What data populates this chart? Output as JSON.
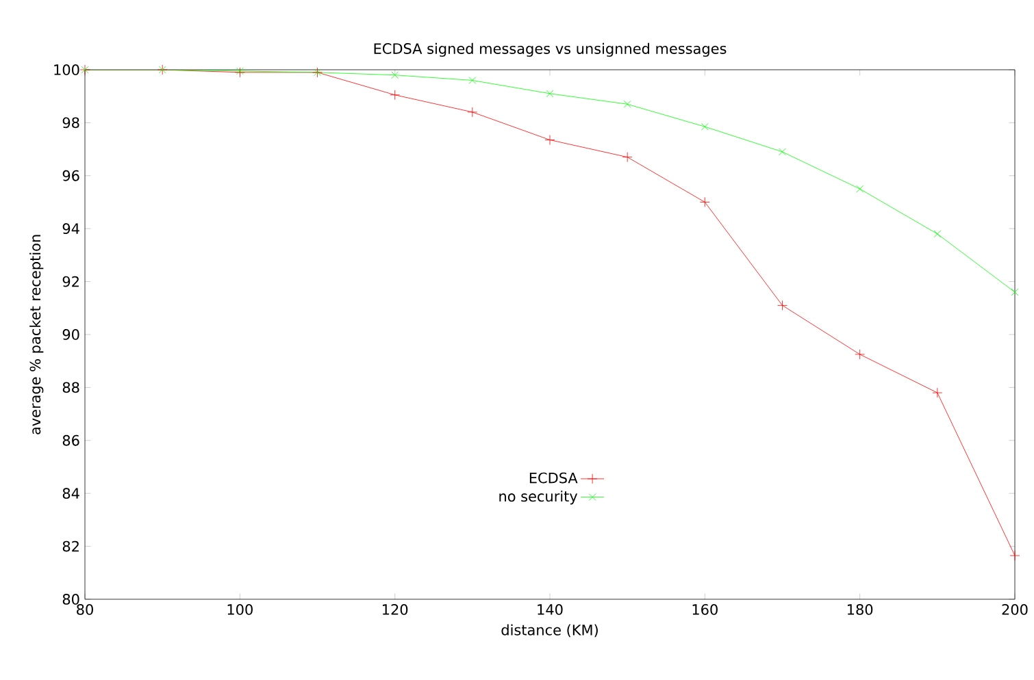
{
  "chart_data": {
    "type": "line",
    "title": "ECDSA signed messages vs unsignned messages",
    "xlabel": "distance (KM)",
    "ylabel": "average % packet reception",
    "x": [
      80,
      90,
      100,
      110,
      120,
      130,
      140,
      150,
      160,
      170,
      180,
      190,
      200
    ],
    "series": [
      {
        "name": "ECDSA",
        "color": "#ff0000",
        "marker": "plus",
        "values": [
          100,
          100,
          99.9,
          99.9,
          99.05,
          98.4,
          97.35,
          96.7,
          95.0,
          91.1,
          89.25,
          87.8,
          81.65
        ]
      },
      {
        "name": "no security",
        "color": "#00ff00",
        "marker": "cross",
        "values": [
          100,
          100,
          99.95,
          99.9,
          99.8,
          99.6,
          99.1,
          98.7,
          97.85,
          96.9,
          95.5,
          93.8,
          91.6
        ]
      }
    ],
    "xlim": [
      80,
      200
    ],
    "xticks": [
      80,
      100,
      120,
      140,
      160,
      180,
      200
    ],
    "ylim": [
      80,
      100
    ],
    "yticks": [
      80,
      82,
      84,
      86,
      88,
      90,
      92,
      94,
      96,
      98,
      100
    ],
    "grid": false,
    "legend": "bottom",
    "line_style": "solid"
  }
}
